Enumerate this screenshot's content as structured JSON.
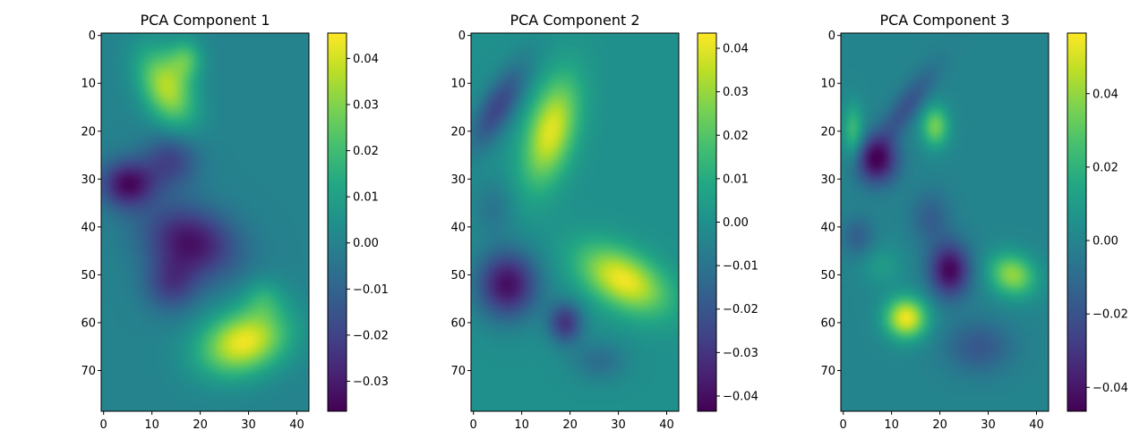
{
  "chart_data": [
    {
      "type": "heatmap",
      "title": "PCA Component 1",
      "xlabel": "",
      "ylabel": "",
      "colormap": "viridis",
      "xlim": [
        -0.5,
        42.5
      ],
      "ylim": [
        78.5,
        -0.5
      ],
      "x_ticks": [
        0,
        10,
        20,
        30,
        40
      ],
      "y_ticks": [
        0,
        10,
        20,
        30,
        40,
        50,
        60,
        70
      ],
      "colorbar": {
        "min": -0.0365,
        "max": 0.0455,
        "ticks": [
          -0.03,
          -0.02,
          -0.01,
          0.0,
          0.01,
          0.02,
          0.03,
          0.04
        ],
        "tick_labels": [
          "−0.03",
          "−0.02",
          "−0.01",
          "0.00",
          "0.01",
          "0.02",
          "0.03",
          "0.04"
        ]
      },
      "blobs": [
        {
          "x": 13,
          "y": 11,
          "sx": 3.5,
          "sy": 6,
          "rot": -25,
          "v": 0.036
        },
        {
          "x": 17,
          "y": 5,
          "sx": 2.5,
          "sy": 3,
          "rot": 0,
          "v": 0.02
        },
        {
          "x": 5,
          "y": 31,
          "sx": 4,
          "sy": 3.5,
          "rot": 0,
          "v": -0.034
        },
        {
          "x": 14,
          "y": 26,
          "sx": 4,
          "sy": 4,
          "rot": 0,
          "v": -0.02
        },
        {
          "x": 18,
          "y": 43,
          "sx": 7,
          "sy": 5,
          "rot": 20,
          "v": -0.032
        },
        {
          "x": 14,
          "y": 52,
          "sx": 4,
          "sy": 4,
          "rot": 0,
          "v": -0.02
        },
        {
          "x": 29,
          "y": 64,
          "sx": 6.5,
          "sy": 4.5,
          "rot": -20,
          "v": 0.044
        },
        {
          "x": 33,
          "y": 55,
          "sx": 3,
          "sy": 3,
          "rot": 0,
          "v": 0.012
        }
      ]
    },
    {
      "type": "heatmap",
      "title": "PCA Component 2",
      "xlabel": "",
      "ylabel": "",
      "colormap": "viridis",
      "xlim": [
        -0.5,
        42.5
      ],
      "ylim": [
        78.5,
        -0.5
      ],
      "x_ticks": [
        0,
        10,
        20,
        30,
        40
      ],
      "y_ticks": [
        0,
        10,
        20,
        30,
        40,
        50,
        60,
        70
      ],
      "colorbar": {
        "min": -0.0435,
        "max": 0.0435,
        "ticks": [
          -0.04,
          -0.03,
          -0.02,
          -0.01,
          0.0,
          0.01,
          0.02,
          0.03,
          0.04
        ],
        "tick_labels": [
          "−0.04",
          "−0.03",
          "−0.02",
          "−0.01",
          "0.00",
          "0.01",
          "0.02",
          "0.03",
          "0.04"
        ]
      },
      "blobs": [
        {
          "x": 16,
          "y": 20,
          "sx": 3.5,
          "sy": 8,
          "rot": 15,
          "v": 0.04
        },
        {
          "x": 5,
          "y": 15,
          "sx": 2.5,
          "sy": 7,
          "rot": 30,
          "v": -0.025
        },
        {
          "x": 31,
          "y": 51,
          "sx": 7,
          "sy": 4,
          "rot": 30,
          "v": 0.042
        },
        {
          "x": 7,
          "y": 52,
          "sx": 4.5,
          "sy": 5,
          "rot": 0,
          "v": -0.04
        },
        {
          "x": 19,
          "y": 60,
          "sx": 2.5,
          "sy": 3,
          "rot": 0,
          "v": -0.03
        },
        {
          "x": 26,
          "y": 68,
          "sx": 4,
          "sy": 3,
          "rot": 0,
          "v": -0.012
        },
        {
          "x": 4,
          "y": 36,
          "sx": 3,
          "sy": 4,
          "rot": 0,
          "v": -0.01
        }
      ]
    },
    {
      "type": "heatmap",
      "title": "PCA Component 3",
      "xlabel": "",
      "ylabel": "",
      "colormap": "viridis",
      "xlim": [
        -0.5,
        42.5
      ],
      "ylim": [
        78.5,
        -0.5
      ],
      "x_ticks": [
        0,
        10,
        20,
        30,
        40
      ],
      "y_ticks": [
        0,
        10,
        20,
        30,
        40,
        50,
        60,
        70
      ],
      "colorbar": {
        "min": -0.0465,
        "max": 0.0565,
        "ticks": [
          -0.04,
          -0.02,
          0.0,
          0.02,
          0.04
        ],
        "tick_labels": [
          "−0.04",
          "−0.02",
          "0.00",
          "0.02",
          "0.04"
        ]
      },
      "blobs": [
        {
          "x": 7,
          "y": 26,
          "sx": 3,
          "sy": 3.5,
          "rot": 0,
          "v": -0.045
        },
        {
          "x": 13,
          "y": 15,
          "sx": 2,
          "sy": 7,
          "rot": 35,
          "v": -0.02
        },
        {
          "x": 19,
          "y": 19,
          "sx": 2,
          "sy": 3,
          "rot": 0,
          "v": 0.035
        },
        {
          "x": 2,
          "y": 20,
          "sx": 1.5,
          "sy": 4,
          "rot": 0,
          "v": 0.025
        },
        {
          "x": 22,
          "y": 49,
          "sx": 3,
          "sy": 4,
          "rot": 0,
          "v": -0.045
        },
        {
          "x": 13,
          "y": 59,
          "sx": 3,
          "sy": 3,
          "rot": 0,
          "v": 0.055
        },
        {
          "x": 35,
          "y": 50,
          "sx": 3.5,
          "sy": 3,
          "rot": 30,
          "v": 0.04
        },
        {
          "x": 28,
          "y": 65,
          "sx": 5,
          "sy": 4,
          "rot": 0,
          "v": -0.018
        },
        {
          "x": 3,
          "y": 42,
          "sx": 2.5,
          "sy": 3,
          "rot": 0,
          "v": -0.015
        },
        {
          "x": 8,
          "y": 48,
          "sx": 3,
          "sy": 3,
          "rot": 0,
          "v": 0.01
        },
        {
          "x": 18,
          "y": 38,
          "sx": 3,
          "sy": 4,
          "rot": 0,
          "v": -0.015
        }
      ]
    }
  ]
}
